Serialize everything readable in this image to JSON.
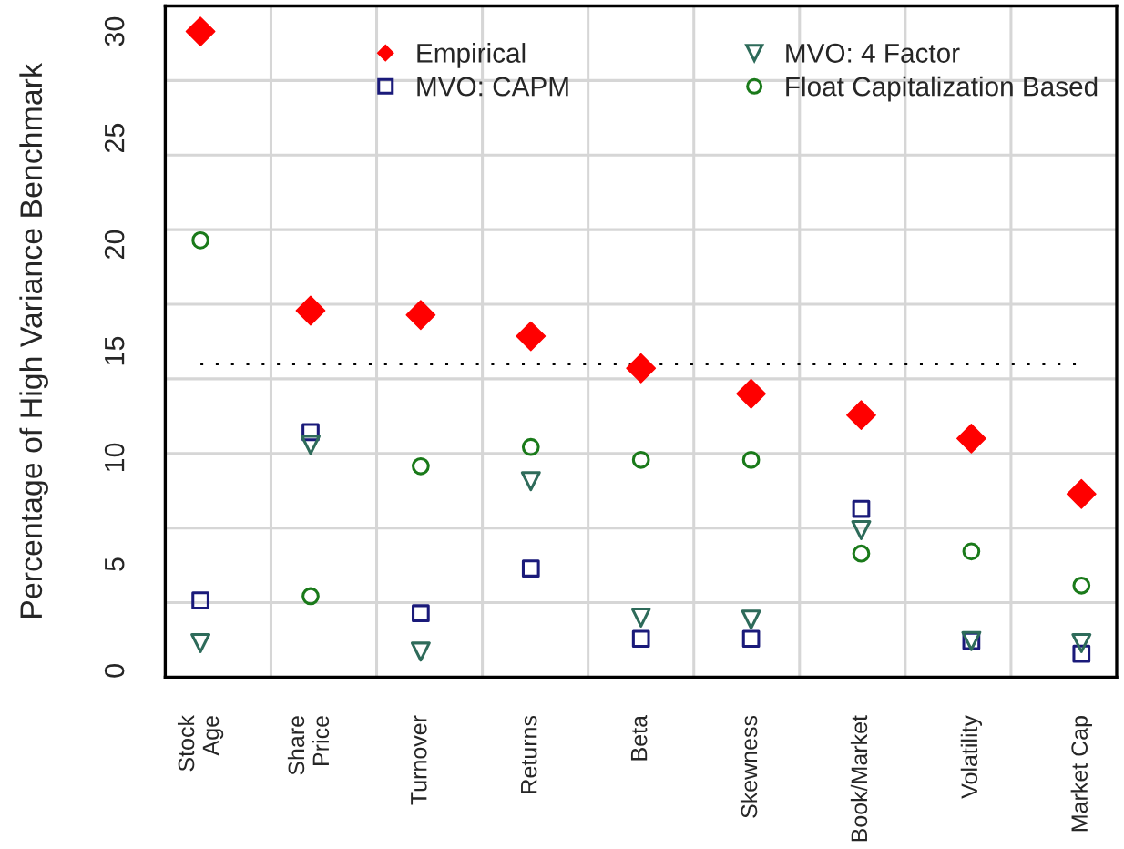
{
  "chart_data": {
    "type": "scatter",
    "ylabel": "Percentage of High Variance Benchmark",
    "categories": [
      "Stock\nAge",
      "Share\nPrice",
      "Turnover",
      "Returns",
      "Beta",
      "Skewness",
      "Book/Market",
      "Volatility",
      "Market Cap"
    ],
    "series": [
      {
        "name": "Empirical",
        "color": "#ff0000",
        "marker": "diamond",
        "values": [
          30.0,
          16.9,
          16.7,
          15.7,
          14.2,
          13.0,
          12.0,
          10.9,
          8.3
        ]
      },
      {
        "name": "MVO: CAPM",
        "color": "#1a1a7a",
        "marker": "square",
        "values": [
          3.3,
          11.2,
          2.7,
          4.8,
          1.5,
          1.5,
          7.6,
          1.4,
          0.8
        ]
      },
      {
        "name": "MVO: 4 Factor",
        "color": "#2e6b5a",
        "marker": "triangle",
        "values": [
          1.3,
          10.6,
          0.9,
          8.9,
          2.5,
          2.4,
          6.6,
          1.4,
          1.3
        ]
      },
      {
        "name": "Float Capitalization Based",
        "color": "#1a7a1a",
        "marker": "circle",
        "values": [
          20.2,
          3.5,
          9.6,
          10.5,
          9.9,
          9.9,
          5.5,
          5.6,
          4.0
        ]
      }
    ],
    "ylim": [
      -0.3,
      31.2
    ],
    "yticks": [
      0,
      5,
      10,
      15,
      20,
      25,
      30
    ],
    "ref_lines": [
      {
        "axis": "y",
        "value": 14.4,
        "line_style": "dotted",
        "color": "#000000"
      }
    ],
    "grid": true,
    "legend": "top right"
  }
}
